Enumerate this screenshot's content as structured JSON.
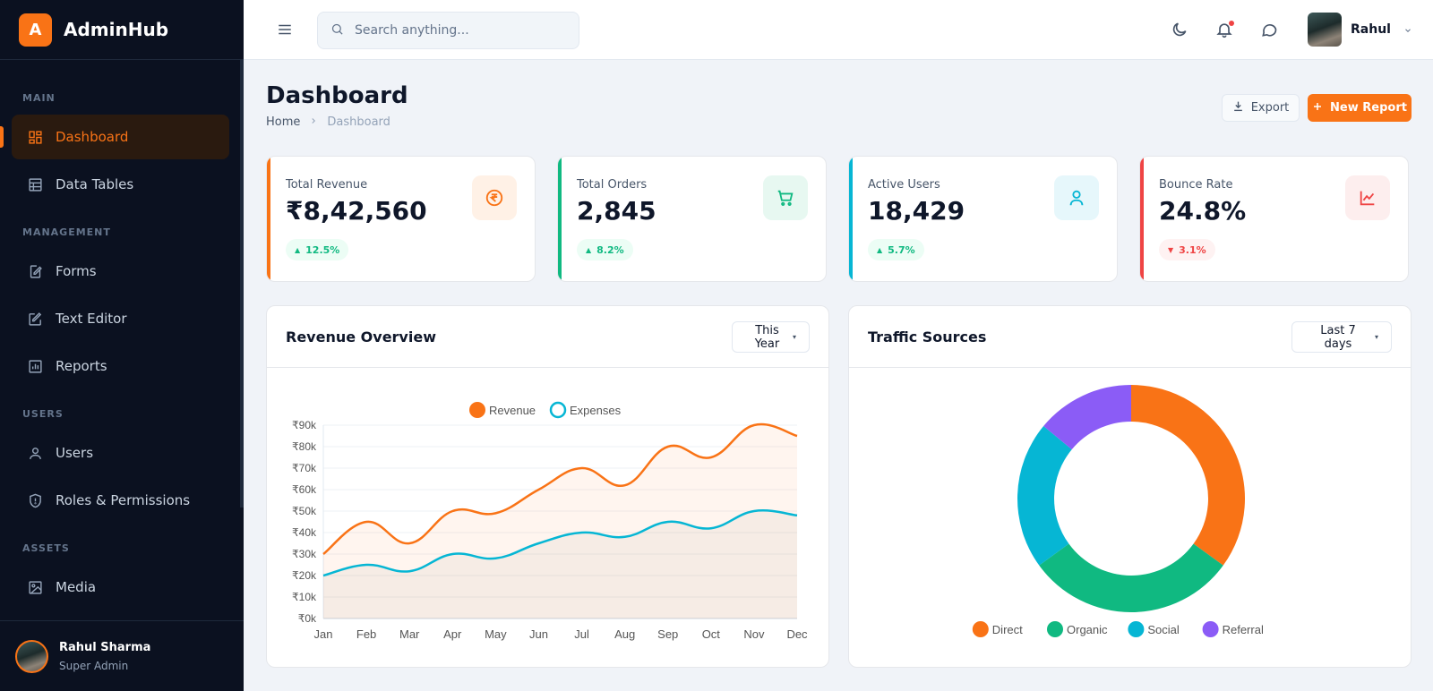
{
  "brand": {
    "logo_letter": "A",
    "name": "AdminHub"
  },
  "sidebar": {
    "sections": {
      "main": "MAIN",
      "management": "MANAGEMENT",
      "users": "USERS",
      "assets": "ASSETS"
    },
    "items": [
      {
        "label": "Dashboard",
        "icon": "dashboard-icon",
        "active": true
      },
      {
        "label": "Data Tables",
        "icon": "table-icon"
      },
      {
        "label": "Forms",
        "icon": "form-icon"
      },
      {
        "label": "Text Editor",
        "icon": "edit-icon"
      },
      {
        "label": "Reports",
        "icon": "report-icon"
      },
      {
        "label": "Users",
        "icon": "user-icon"
      },
      {
        "label": "Roles & Permissions",
        "icon": "shield-icon"
      },
      {
        "label": "Media",
        "icon": "image-icon"
      }
    ],
    "user": {
      "name": "Rahul Sharma",
      "role": "Super Admin"
    }
  },
  "header": {
    "search_placeholder": "Search anything...",
    "user_name": "Rahul"
  },
  "page": {
    "title": "Dashboard",
    "breadcrumb": [
      "Home",
      "Dashboard"
    ],
    "export_label": "Export",
    "new_report_label": "New Report"
  },
  "stats": [
    {
      "label": "Total Revenue",
      "value": "₹8,42,560",
      "change": "12.5%",
      "direction": "up",
      "color": "#f97316",
      "icon": "rupee-icon"
    },
    {
      "label": "Total Orders",
      "value": "2,845",
      "change": "8.2%",
      "direction": "up",
      "color": "#10b981",
      "icon": "cart-icon"
    },
    {
      "label": "Active Users",
      "value": "18,429",
      "change": "5.7%",
      "direction": "up",
      "color": "#06b6d4",
      "icon": "user-icon"
    },
    {
      "label": "Bounce Rate",
      "value": "24.8%",
      "change": "3.1%",
      "direction": "down",
      "color": "#ef4444",
      "icon": "trend-icon"
    }
  ],
  "revenue_panel": {
    "title": "Revenue Overview",
    "range": "This Year"
  },
  "traffic_panel": {
    "title": "Traffic Sources",
    "range": "Last 7 days"
  },
  "chart_data": [
    {
      "type": "line",
      "title": "",
      "categories": [
        "Jan",
        "Feb",
        "Mar",
        "Apr",
        "May",
        "Jun",
        "Jul",
        "Aug",
        "Sep",
        "Oct",
        "Nov",
        "Dec"
      ],
      "series": [
        {
          "name": "Revenue",
          "color": "#f97316",
          "values": [
            30000,
            45000,
            35000,
            50000,
            49000,
            60000,
            70000,
            62000,
            80000,
            75000,
            90000,
            85000
          ]
        },
        {
          "name": "Expenses",
          "color": "#06b6d4",
          "values": [
            20000,
            25000,
            22000,
            30000,
            28000,
            35000,
            40000,
            38000,
            45000,
            42000,
            50000,
            48000
          ]
        }
      ],
      "ylim": [
        0,
        90000
      ],
      "yticks": [
        "₹0k",
        "₹10k",
        "₹20k",
        "₹30k",
        "₹40k",
        "₹50k",
        "₹60k",
        "₹70k",
        "₹80k",
        "₹90k"
      ],
      "legend": "top-center",
      "grid": true
    },
    {
      "type": "pie",
      "title": "",
      "categories": [
        "Direct",
        "Organic",
        "Social",
        "Referral"
      ],
      "values": [
        35,
        30,
        21,
        14
      ],
      "colors": [
        "#f97316",
        "#10b981",
        "#06b6d4",
        "#8b5cf6"
      ],
      "legend": "bottom"
    }
  ]
}
